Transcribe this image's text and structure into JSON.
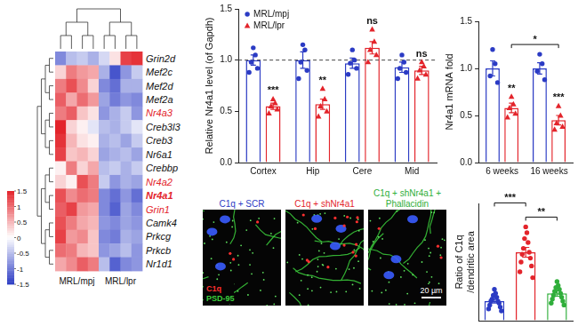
{
  "heatmap": {
    "type": "heatmap",
    "rows": [
      "Grin2d",
      "Mef2c",
      "Mef2d",
      "Mef2a",
      "Nr4a3",
      "Creb3l3",
      "Creb3",
      "Nr6a1",
      "Crebbp",
      "Nr4a2",
      "Nr4a1",
      "Grin1",
      "Camk4",
      "Prkcg",
      "Prkcb",
      "Nr1d1"
    ],
    "groups": [
      {
        "name": "MRL/mpj",
        "columns": 4
      },
      {
        "name": "MRL/lpr",
        "columns": 4
      }
    ],
    "cells": [
      [
        -0.9,
        -0.5,
        -0.4,
        -0.6,
        -0.3,
        0.2,
        1.3,
        1.4
      ],
      [
        0.3,
        0.9,
        0.7,
        0.6,
        -0.6,
        -1.3,
        -0.8,
        -0.4
      ],
      [
        0.9,
        1.2,
        0.8,
        0.3,
        -0.9,
        -1.1,
        -0.6,
        -0.6
      ],
      [
        1.1,
        0.6,
        1.0,
        0.7,
        -0.7,
        -1.0,
        -0.8,
        -0.9
      ],
      [
        0.9,
        1.1,
        0.4,
        0.2,
        -0.8,
        -0.6,
        -0.4,
        -0.8
      ],
      [
        1.5,
        0.3,
        0.1,
        -0.2,
        -0.5,
        -0.6,
        -0.4,
        -0.2
      ],
      [
        1.4,
        0.5,
        0.2,
        0.1,
        -0.6,
        -0.5,
        -0.7,
        -0.4
      ],
      [
        1.3,
        0.4,
        0.5,
        0.3,
        -0.7,
        -0.6,
        -0.5,
        -0.7
      ],
      [
        0.1,
        0.9,
        0.3,
        0.6,
        -0.5,
        -0.4,
        -0.6,
        -0.4
      ],
      [
        0.3,
        0.1,
        1.2,
        0.9,
        -0.4,
        -0.8,
        -0.6,
        -0.7
      ],
      [
        1.2,
        0.8,
        1.0,
        0.9,
        -0.9,
        -1.1,
        -0.8,
        -1.1
      ],
      [
        1.1,
        1.3,
        0.7,
        0.6,
        -0.9,
        -1.2,
        -0.7,
        -0.9
      ],
      [
        1.2,
        0.9,
        0.6,
        0.5,
        -0.8,
        -0.9,
        -0.7,
        -0.8
      ],
      [
        1.3,
        0.7,
        0.8,
        0.4,
        -0.9,
        -1.0,
        -0.6,
        -0.7
      ],
      [
        1.0,
        0.9,
        0.5,
        0.4,
        -0.8,
        -0.7,
        -0.5,
        -0.8
      ],
      [
        0.6,
        0.8,
        1.1,
        0.9,
        -0.5,
        -1.2,
        -0.9,
        -0.8
      ]
    ],
    "highlighted_rows": [
      "Nr4a3",
      "Nr4a2",
      "Nr4a1",
      "Grin1"
    ],
    "highlight_color": "#e3242b",
    "bold_rows": [
      "Nr4a1"
    ],
    "colorbar": {
      "range": [
        -1.5,
        1.5
      ],
      "ticks": [
        1.5,
        1,
        0.5,
        0,
        -0.5,
        -1,
        -1.5
      ],
      "colors": [
        "#2b3bc4",
        "#ffffff",
        "#e3242b"
      ]
    }
  },
  "chart_data": [
    {
      "type": "bar",
      "y_label": "Relative Nr4a1 level (of Gapdh)",
      "categories": [
        "Cortex",
        "Hip",
        "Cere",
        "Mid"
      ],
      "ylim": [
        0,
        1.5
      ],
      "yticks": [
        {
          "value": 0,
          "label": "0.0"
        },
        {
          "value": 0.5,
          "label": "0.5"
        },
        {
          "value": 1,
          "label": "1.0"
        },
        {
          "value": 1.5,
          "label": "1.5"
        }
      ],
      "grid": false,
      "legend": "top-left",
      "reference_line": 1,
      "series": [
        {
          "name": "MRL/mpj",
          "color": "#2b3bc4",
          "marker": "circle",
          "values": [
            1.0,
            1.0,
            0.97,
            0.93
          ],
          "errors": [
            0.05,
            0.08,
            0.05,
            0.05
          ],
          "points": [
            [
              1.12,
              1.05,
              0.98,
              0.92,
              0.88
            ],
            [
              1.15,
              1.1,
              0.98,
              0.9,
              0.82
            ],
            [
              1.1,
              1.0,
              0.97,
              0.92,
              0.86
            ],
            [
              1.05,
              0.98,
              0.92,
              0.88,
              0.82
            ]
          ]
        },
        {
          "name": "MRL/lpr",
          "color": "#e3242b",
          "marker": "triangle",
          "values": [
            0.55,
            0.57,
            1.12,
            0.9
          ],
          "errors": [
            0.03,
            0.05,
            0.06,
            0.04
          ],
          "points": [
            [
              0.62,
              0.58,
              0.55,
              0.52,
              0.48
            ],
            [
              0.72,
              0.62,
              0.55,
              0.5,
              0.45
            ],
            [
              1.3,
              1.18,
              1.1,
              1.05,
              0.98
            ],
            [
              0.98,
              0.94,
              0.9,
              0.86,
              0.82
            ]
          ],
          "significance": [
            "***",
            "**",
            "ns",
            "ns"
          ]
        }
      ]
    },
    {
      "type": "bar",
      "y_label": "Nr4a1 mRNA fold",
      "categories": [
        "6 weeks",
        "16 weeks"
      ],
      "ylim": [
        0,
        1.5
      ],
      "yticks": [
        {
          "value": 0,
          "label": "0.0"
        },
        {
          "value": 0.5,
          "label": "0.5"
        },
        {
          "value": 1,
          "label": "1.0"
        },
        {
          "value": 1.5,
          "label": "1.5"
        }
      ],
      "grid": false,
      "series": [
        {
          "name": "MRL/mpj",
          "color": "#2b3bc4",
          "marker": "circle",
          "values": [
            1.0,
            1.0
          ],
          "errors": [
            0.08,
            0.06
          ],
          "points": [
            [
              1.2,
              1.05,
              0.92,
              0.85
            ],
            [
              1.15,
              1.05,
              0.97,
              0.88
            ]
          ]
        },
        {
          "name": "MRL/lpr",
          "color": "#e3242b",
          "marker": "triangle",
          "values": [
            0.58,
            0.45
          ],
          "errors": [
            0.05,
            0.05
          ],
          "points": [
            [
              0.7,
              0.62,
              0.58,
              0.52,
              0.48
            ],
            [
              0.6,
              0.5,
              0.42,
              0.38,
              0.35
            ]
          ],
          "significance": [
            "**",
            "***"
          ]
        }
      ],
      "brackets": [
        {
          "from": [
            1,
            0
          ],
          "to": [
            1,
            1
          ],
          "label": "*"
        }
      ]
    },
    {
      "type": "bar",
      "y_label": [
        "Ratio of C1q",
        "/dendritic area"
      ],
      "categories": [
        null,
        null,
        null
      ],
      "values": [
        0.1,
        0.35,
        0.14
      ],
      "errors": [
        0.01,
        0.025,
        0.015
      ],
      "points": [
        [
          0.16,
          0.14,
          0.13,
          0.12,
          0.11,
          0.1,
          0.1,
          0.09,
          0.08,
          0.07,
          0.06,
          0.05
        ],
        [
          0.48,
          0.45,
          0.42,
          0.4,
          0.37,
          0.35,
          0.34,
          0.32,
          0.3,
          0.28,
          0.25,
          0.22
        ],
        [
          0.2,
          0.18,
          0.17,
          0.16,
          0.15,
          0.14,
          0.13,
          0.12,
          0.11,
          0.1,
          0.09,
          0.08
        ]
      ],
      "colors": [
        "#2b3bc4",
        "#e3242b",
        "#2fae3a"
      ],
      "marker": "circle",
      "ylim": [
        0,
        0.6
      ],
      "tick_labels": false,
      "grid": false,
      "brackets": [
        {
          "from": [
            0,
            0
          ],
          "to": [
            0,
            1
          ],
          "label": "***"
        },
        {
          "from": [
            0,
            1
          ],
          "to": [
            0,
            2
          ],
          "label": "**"
        }
      ]
    }
  ],
  "micrographs": {
    "panels": [
      {
        "title": "C1q + SCR",
        "color": "#2b3bc4"
      },
      {
        "title": "C1q + shNr4a1",
        "color": "#e3242b"
      },
      {
        "title": "C1q + shNr4a1 + Phallacidin",
        "color": "#2fae3a"
      }
    ],
    "legend": [
      {
        "name": "C1q",
        "color": "#ff3030"
      },
      {
        "name": "PSD-95",
        "color": "#3ccf3c"
      }
    ],
    "scale_bar": "20 µm"
  }
}
